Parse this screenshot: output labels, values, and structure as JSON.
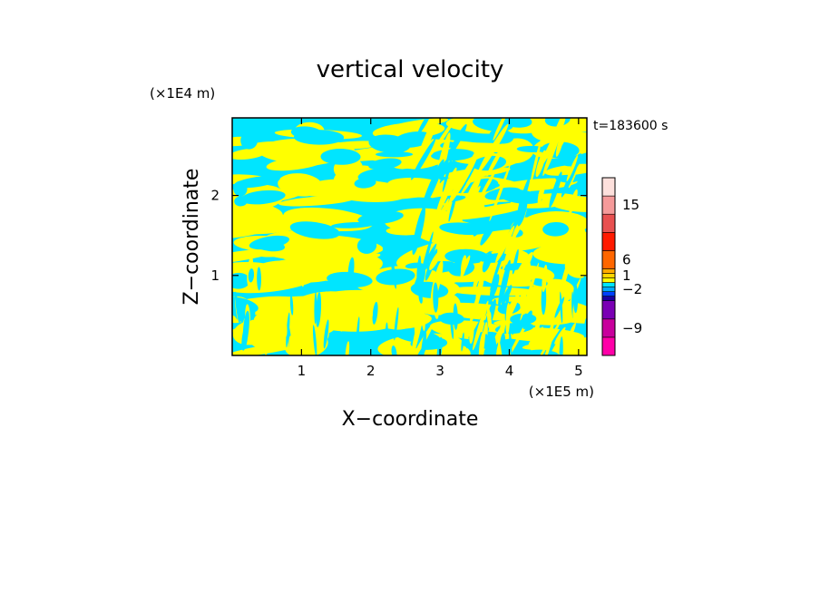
{
  "chart_data": {
    "type": "heatmap",
    "title": "vertical velocity",
    "xlabel": "X−coordinate",
    "ylabel": "Z−coordinate",
    "x_unit": "(×1E5 m)",
    "y_unit": "(×1E4 m)",
    "time_label": "t=183600 s",
    "xlim": [
      0,
      5.12
    ],
    "ylim": [
      0,
      2.97
    ],
    "x_ticks": [
      1,
      2,
      3,
      4,
      5
    ],
    "y_ticks": [
      1,
      2
    ],
    "x_tick_labels": [
      "1",
      "2",
      "3",
      "4",
      "5"
    ],
    "y_tick_labels": [
      "1",
      "2"
    ],
    "grid": false,
    "field_colors": {
      "positive": "#ffff00",
      "negative": "#00e5ff"
    },
    "colorbar": {
      "placement": "right",
      "levels_bottom_to_top": [
        {
          "color": "#ff00a8"
        },
        {
          "color": "#c8009c"
        },
        {
          "color": "#7a00b4"
        },
        {
          "color": "#1a00a0"
        },
        {
          "color": "#0040ff"
        },
        {
          "color": "#00aaff"
        },
        {
          "color": "#00e5ff"
        },
        {
          "color": "#ffff00"
        },
        {
          "color": "#ffd700"
        },
        {
          "color": "#ffaa00"
        },
        {
          "color": "#ff6600"
        },
        {
          "color": "#ff1a00"
        },
        {
          "color": "#e85050"
        },
        {
          "color": "#f59a9a"
        },
        {
          "color": "#fde0dc"
        }
      ],
      "labels": [
        {
          "text": "−9",
          "at_level": 1
        },
        {
          "text": "−2",
          "at_level": 5
        },
        {
          "text": "1",
          "at_level": 8
        },
        {
          "text": "6",
          "at_level": 10
        },
        {
          "text": "15",
          "at_level": 13
        }
      ]
    }
  }
}
